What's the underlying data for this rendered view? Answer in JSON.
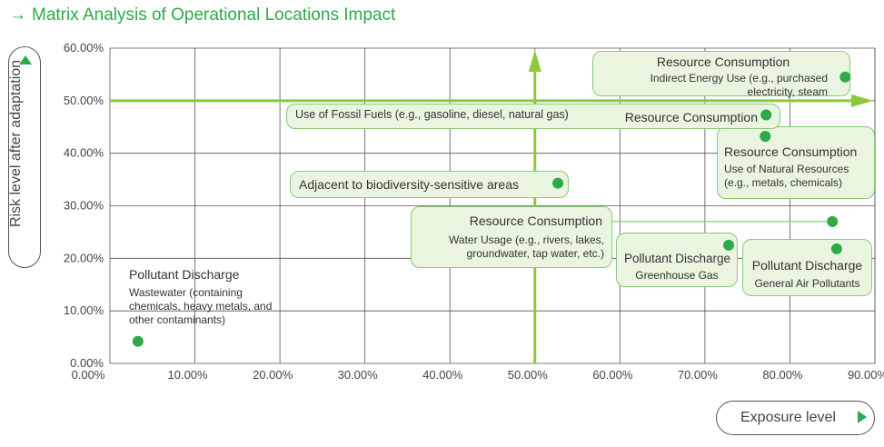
{
  "title": "Matrix Analysis of Operational Locations Impact",
  "icons": {
    "title_arrow": "arrow-right-icon",
    "y_axis": "triangle-up-icon",
    "x_axis": "triangle-right-icon"
  },
  "colors": {
    "accent": "#2eaa4a",
    "box_fill": "#e9f5df",
    "box_border": "#8cc878",
    "threshold_line": "#8cc83c"
  },
  "chart_data": {
    "type": "scatter",
    "xlabel": "Exposure level",
    "ylabel": "Risk level after adaptation",
    "xlim": [
      0,
      90
    ],
    "ylim": [
      0,
      60
    ],
    "x_ticks": [
      "0.00%",
      "10.00%",
      "20.00%",
      "30.00%",
      "40.00%",
      "50.00%",
      "60.00%",
      "70.00%",
      "80.00%",
      "90.00%"
    ],
    "y_ticks": [
      "0.00%",
      "10.00%",
      "20.00%",
      "30.00%",
      "40.00%",
      "50.00%",
      "60.00%"
    ],
    "threshold": {
      "x": 50,
      "y": 50
    },
    "grid": true,
    "points": [
      {
        "x": 3.3,
        "y": 4.2,
        "category": "Pollutant Discharge",
        "detail": "Wastewater (containing chemicals, heavy metals, and other contaminants)"
      },
      {
        "x": 52.7,
        "y": 34.3,
        "category": "",
        "detail": "Adjacent to biodiversity-sensitive areas"
      },
      {
        "x": 72.8,
        "y": 22.5,
        "category": "Pollutant Discharge",
        "detail": "Greenhouse Gas"
      },
      {
        "x": 77.1,
        "y": 43.2,
        "category": "Resource Consumption",
        "detail": "Use of Natural Resources (e.g., metals, chemicals)"
      },
      {
        "x": 77.2,
        "y": 47.3,
        "category": "Resource Consumption",
        "detail": "Use of Fossil Fuels (e.g., gasoline, diesel, natural gas)"
      },
      {
        "x": 85.0,
        "y": 27.0,
        "category": "Resource Consumption",
        "detail": "Water Usage (e.g., rivers, lakes, groundwater, tap water, etc.)"
      },
      {
        "x": 85.5,
        "y": 21.8,
        "category": "Pollutant Discharge",
        "detail": "General Air Pollutants"
      },
      {
        "x": 86.5,
        "y": 54.5,
        "category": "Resource Consumption",
        "detail": "Indirect Energy Use (e.g., purchased electricity, steam"
      }
    ]
  }
}
